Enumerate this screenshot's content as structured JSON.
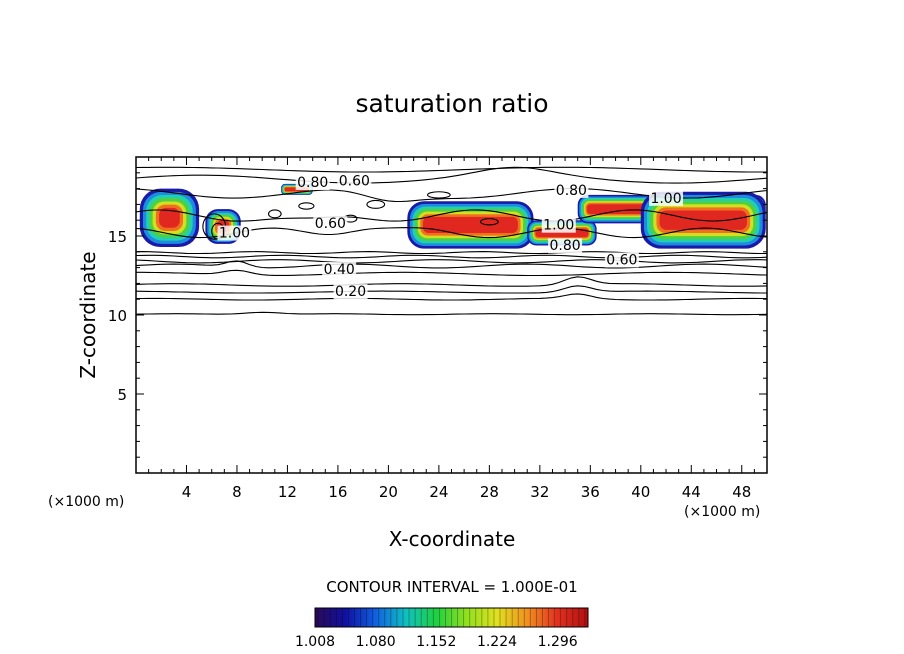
{
  "chart_data": {
    "type": "contour",
    "title": "saturation ratio",
    "xlabel": "X-coordinate",
    "ylabel": "Z-coordinate",
    "x_unit_left": "(×1000 m)",
    "x_unit_right": "(×1000 m)",
    "xlim": [
      0,
      50
    ],
    "ylim": [
      0,
      20
    ],
    "x_ticks": [
      4,
      8,
      12,
      16,
      20,
      24,
      28,
      32,
      36,
      40,
      44,
      48
    ],
    "y_ticks": [
      5,
      10,
      15
    ],
    "contour_labels": [
      {
        "text": "0.20",
        "x": 17.0,
        "z": 11.2
      },
      {
        "text": "0.40",
        "x": 16.1,
        "z": 12.6
      },
      {
        "text": "0.60",
        "x": 15.4,
        "z": 15.5
      },
      {
        "text": "0.60",
        "x": 17.3,
        "z": 18.2
      },
      {
        "text": "0.80",
        "x": 14.0,
        "z": 18.1
      },
      {
        "text": "1.00",
        "x": 7.8,
        "z": 14.9
      },
      {
        "text": "0.80",
        "x": 34.5,
        "z": 17.6
      },
      {
        "text": "1.00",
        "x": 42.0,
        "z": 17.1
      },
      {
        "text": "1.00",
        "x": 33.5,
        "z": 15.4
      },
      {
        "text": "0.80",
        "x": 34.0,
        "z": 14.1
      },
      {
        "text": "0.60",
        "x": 38.5,
        "z": 13.2
      }
    ],
    "supersaturated_regions": [
      {
        "x_min": 0.3,
        "x_max": 5.0,
        "z_min": 14.3,
        "z_max": 18.0
      },
      {
        "x_min": 5.5,
        "x_max": 8.3,
        "z_min": 14.5,
        "z_max": 16.7
      },
      {
        "x_min": 11.5,
        "x_max": 14.0,
        "z_min": 17.6,
        "z_max": 18.3
      },
      {
        "x_min": 21.5,
        "x_max": 31.5,
        "z_min": 14.2,
        "z_max": 17.2
      },
      {
        "x_min": 31.0,
        "x_max": 36.5,
        "z_min": 14.4,
        "z_max": 16.0
      },
      {
        "x_min": 35.0,
        "x_max": 49.9,
        "z_min": 15.8,
        "z_max": 17.6
      },
      {
        "x_min": 40.0,
        "x_max": 49.9,
        "z_min": 14.2,
        "z_max": 17.8
      }
    ],
    "contour_interval_label": "CONTOUR INTERVAL = 1.000E-01",
    "colorbar": {
      "min": 1.008,
      "max": 1.332,
      "tick_labels": [
        "1.008",
        "1.080",
        "1.152",
        "1.224",
        "1.296"
      ],
      "colors": [
        "#2a0a55",
        "#1010a0",
        "#1060e0",
        "#10c0c0",
        "#20d040",
        "#90e020",
        "#e0e020",
        "#f09020",
        "#e03020",
        "#b01010"
      ]
    }
  }
}
